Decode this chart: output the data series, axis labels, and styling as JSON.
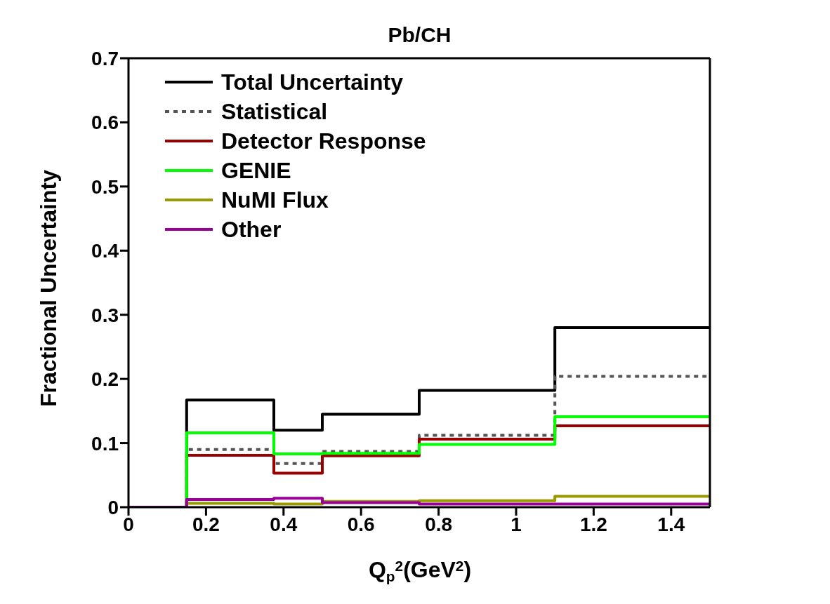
{
  "chart_data": {
    "type": "step",
    "title": "Pb/CH",
    "xlabel": "Q$_{p}$$^{2}$(GeV$^{2}$)",
    "ylabel": "Fractional Uncertainty",
    "x": [
      0,
      0.15,
      0.375,
      0.5,
      0.75,
      1.1,
      1.5
    ],
    "series": [
      {
        "name": "Total Uncertainty",
        "color": "#000000",
        "values": [
          0,
          0.167,
          0.12,
          0.145,
          0.182,
          0.28,
          0.28
        ]
      },
      {
        "name": "Statistical",
        "color": "#555555",
        "line_style": "dotted",
        "values": [
          0,
          0.09,
          0.068,
          0.087,
          0.112,
          0.204,
          0.204
        ]
      },
      {
        "name": "Detector Response",
        "color": "#990000",
        "values": [
          0,
          0.081,
          0.053,
          0.08,
          0.106,
          0.127,
          0.127
        ]
      },
      {
        "name": "GENIE",
        "color": "#00ff00",
        "values": [
          0,
          0.116,
          0.083,
          0.084,
          0.098,
          0.141,
          0.141
        ]
      },
      {
        "name": "NuMI Flux",
        "color": "#999900",
        "values": [
          0,
          0.006,
          0.005,
          0.009,
          0.01,
          0.017,
          0.017
        ]
      },
      {
        "name": "Other",
        "color": "#990099",
        "values": [
          0,
          0.012,
          0.014,
          0.007,
          0.005,
          0.005,
          0.005
        ]
      }
    ],
    "xlim": [
      0,
      1.5
    ],
    "xticks": [
      0,
      0.2,
      0.4,
      0.6,
      0.8,
      1,
      1.2,
      1.4
    ],
    "ylim": [
      0,
      0.7
    ],
    "yticks": [
      0,
      0.1,
      0.2,
      0.3,
      0.4,
      0.5,
      0.6,
      0.7
    ],
    "grid": false,
    "legend": "top left",
    "line_style": "solid"
  }
}
